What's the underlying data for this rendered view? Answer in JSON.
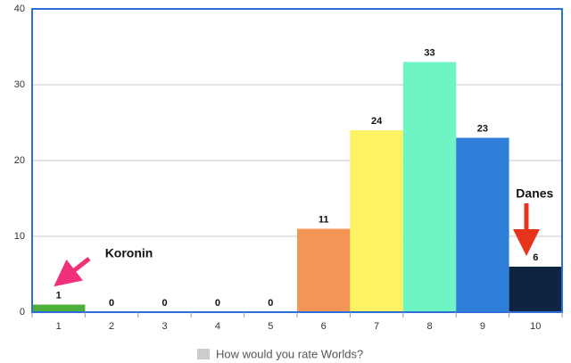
{
  "chart_data": {
    "type": "bar",
    "categories": [
      "1",
      "2",
      "3",
      "4",
      "5",
      "6",
      "7",
      "8",
      "9",
      "10"
    ],
    "series": [
      {
        "name": "How would you rate Worlds?",
        "color": "#cccccc",
        "values": [
          1,
          0,
          0,
          0,
          0,
          11,
          24,
          33,
          23,
          6
        ],
        "colors": [
          "#4caf3a",
          "#4caf3a",
          "#4caf3a",
          "#4caf3a",
          "#4caf3a",
          "#f39555",
          "#fdf263",
          "#6ff5c4",
          "#2f7fd9",
          "#0f2440"
        ]
      }
    ],
    "ylim": [
      0,
      40
    ],
    "yticks": [
      0,
      10,
      20,
      30,
      40
    ],
    "grid": true,
    "legend": "bottom",
    "annotations": [
      {
        "text": "Koronin",
        "category": 0
      },
      {
        "text": "Danes",
        "category": 9
      }
    ]
  }
}
